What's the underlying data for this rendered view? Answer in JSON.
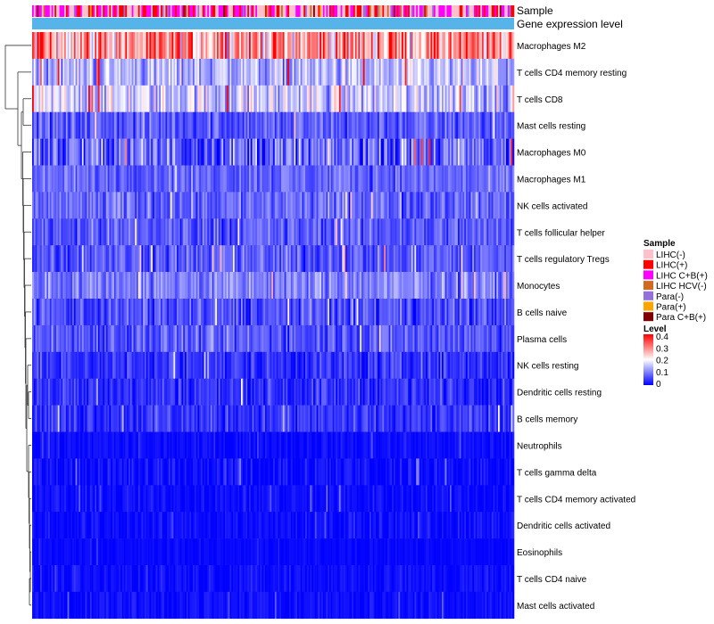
{
  "chart_data": {
    "type": "heatmap",
    "annotation_tracks": [
      "Sample",
      "Gene expression level"
    ],
    "rows": [
      {
        "name": "Macrophages M2",
        "mean": 0.28,
        "spread": 0.12
      },
      {
        "name": "T cells CD4 memory resting",
        "mean": 0.14,
        "spread": 0.07
      },
      {
        "name": "T cells CD8",
        "mean": 0.16,
        "spread": 0.08
      },
      {
        "name": "Mast cells resting",
        "mean": 0.07,
        "spread": 0.05
      },
      {
        "name": "Macrophages M0",
        "mean": 0.08,
        "spread": 0.09
      },
      {
        "name": "Macrophages M1",
        "mean": 0.08,
        "spread": 0.04
      },
      {
        "name": "NK cells activated",
        "mean": 0.08,
        "spread": 0.05
      },
      {
        "name": "T cells follicular helper",
        "mean": 0.07,
        "spread": 0.05
      },
      {
        "name": "T cells regulatory  Tregs",
        "mean": 0.07,
        "spread": 0.05
      },
      {
        "name": "Monocytes",
        "mean": 0.1,
        "spread": 0.05
      },
      {
        "name": "B cells naive",
        "mean": 0.06,
        "spread": 0.05
      },
      {
        "name": "Plasma cells",
        "mean": 0.07,
        "spread": 0.05
      },
      {
        "name": "NK cells resting",
        "mean": 0.04,
        "spread": 0.04
      },
      {
        "name": "Dendritic cells resting",
        "mean": 0.04,
        "spread": 0.04
      },
      {
        "name": "B cells memory",
        "mean": 0.04,
        "spread": 0.04
      },
      {
        "name": "Neutrophils",
        "mean": 0.01,
        "spread": 0.015
      },
      {
        "name": "T cells gamma delta",
        "mean": 0.01,
        "spread": 0.03
      },
      {
        "name": "T cells CD4 memory activated",
        "mean": 0.01,
        "spread": 0.02
      },
      {
        "name": "Dendritic cells activated",
        "mean": 0.01,
        "spread": 0.02
      },
      {
        "name": "Eosinophils",
        "mean": 0.005,
        "spread": 0.01
      },
      {
        "name": "T cells CD4 naive",
        "mean": 0.01,
        "spread": 0.02
      },
      {
        "name": "Mast cells activated",
        "mean": 0.01,
        "spread": 0.02
      }
    ],
    "n_samples": 300,
    "sample_legend": {
      "title": "Sample",
      "entries": [
        {
          "label": "LIHC(-)",
          "color": "#ffc0cb"
        },
        {
          "label": "LIHC(+)",
          "color": "#ff0000"
        },
        {
          "label": "LIHC C+B(+)",
          "color": "#ff00ff"
        },
        {
          "label": "LIHC HCV(-)",
          "color": "#d2691e"
        },
        {
          "label": "Para(-)",
          "color": "#9370db"
        },
        {
          "label": "Para(+)",
          "color": "#ffa500"
        },
        {
          "label": "Para C+B(+)",
          "color": "#800000"
        }
      ]
    },
    "level_legend": {
      "title": "Level",
      "range": [
        0,
        0.4
      ],
      "ticks": [
        "0.4",
        "0.3",
        "0.2",
        "0.1",
        "0"
      ],
      "colors": {
        "low": "#0000ff",
        "mid": "#ffffff",
        "high": "#ff0000"
      }
    },
    "gene_expression_color": "#56b4e9"
  }
}
